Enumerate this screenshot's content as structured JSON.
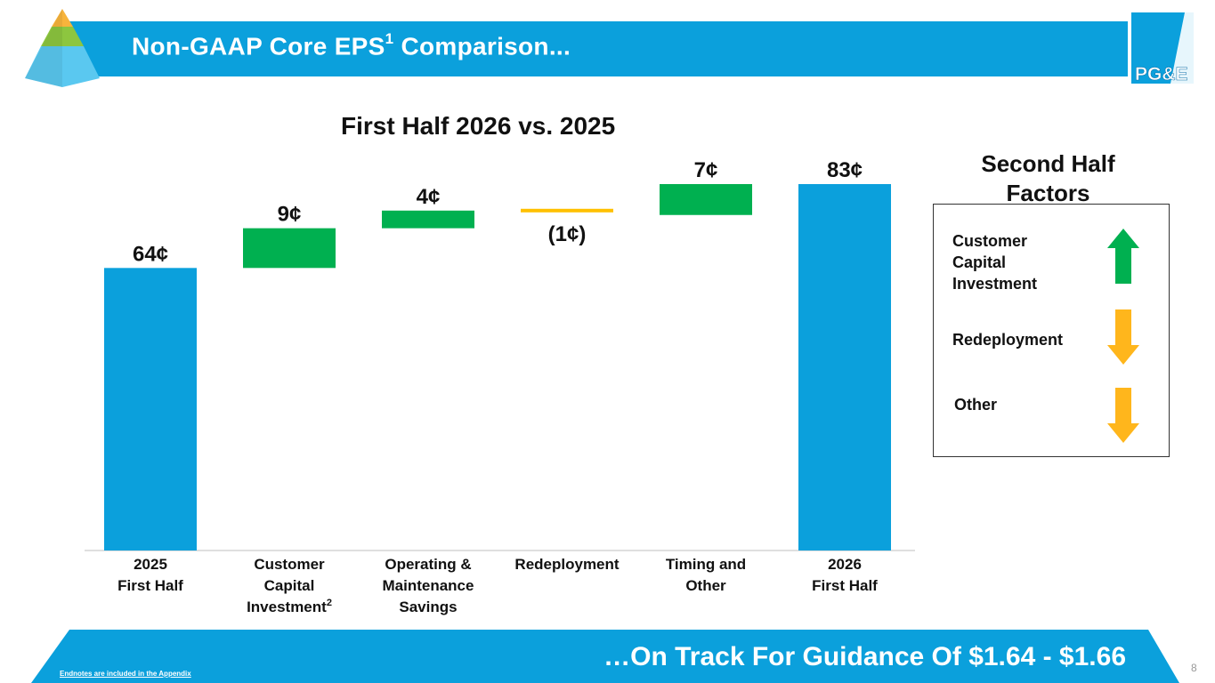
{
  "header": {
    "title": "Non-GAAP Core EPS",
    "title_sup": "1",
    "title_suffix": " Comparison..."
  },
  "logo": {
    "text": "PG&E"
  },
  "chart_data": {
    "type": "bar",
    "subtype": "waterfall",
    "title": "First Half 2026 vs. 2025",
    "unit": "¢",
    "categories": [
      {
        "label": "2025\nFirst Half",
        "sup": ""
      },
      {
        "label": "Customer\nCapital\nInvestment",
        "sup": "2"
      },
      {
        "label": "Operating &\nMaintenance\nSavings",
        "sup": ""
      },
      {
        "label": "Redeployment",
        "sup": ""
      },
      {
        "label": "Timing and\nOther",
        "sup": ""
      },
      {
        "label": "2026\nFirst Half",
        "sup": ""
      }
    ],
    "bars": [
      {
        "kind": "total",
        "start": 0,
        "end": 64,
        "label": "64¢"
      },
      {
        "kind": "increase",
        "start": 64,
        "end": 73,
        "label": "9¢"
      },
      {
        "kind": "increase",
        "start": 73,
        "end": 77,
        "label": "4¢"
      },
      {
        "kind": "decrease",
        "start": 77,
        "end": 76,
        "label": "(1¢)"
      },
      {
        "kind": "increase",
        "start": 76,
        "end": 83,
        "label": "7¢"
      },
      {
        "kind": "total",
        "start": 0,
        "end": 83,
        "label": "83¢"
      }
    ],
    "ylim": [
      0,
      83
    ],
    "colors": {
      "total": "#0ba0dc",
      "increase": "#00b050",
      "decrease": "#ffc000"
    },
    "grid": false,
    "legend": "none"
  },
  "side_panel": {
    "title": "Second Half Factors",
    "factors": [
      {
        "label": "Customer\nCapital\nInvestment",
        "direction": "up",
        "color": "#00b050"
      },
      {
        "label": "Redeployment",
        "direction": "down",
        "color": "#ffb61c"
      },
      {
        "label": "Other",
        "direction": "down",
        "color": "#ffb61c"
      }
    ]
  },
  "footer": {
    "tagline": "…On Track For Guidance Of $1.64 - $1.66",
    "endnote": "Endnotes are included in the Appendix",
    "page_number": "8"
  }
}
